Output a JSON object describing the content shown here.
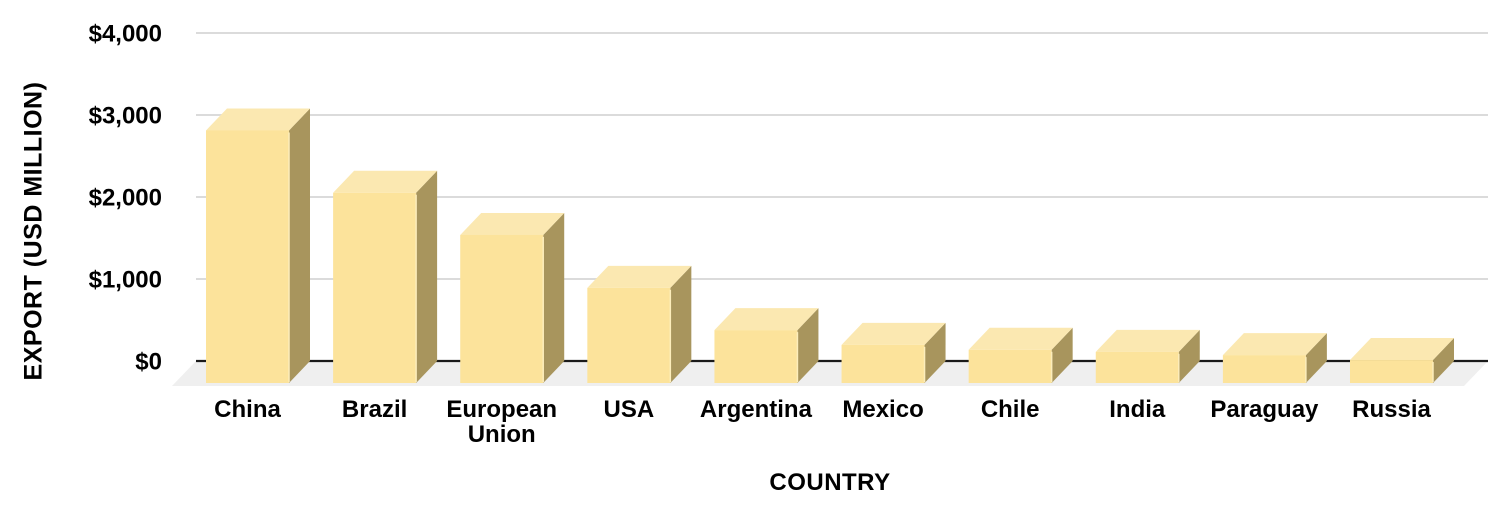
{
  "chart_data": {
    "type": "bar",
    "effect": "3d-column",
    "xlabel": "COUNTRY",
    "ylabel": "EXPORT (USD MILLION)",
    "categories": [
      "China",
      "Brazil",
      "European Union",
      "USA",
      "Argentina",
      "Mexico",
      "Chile",
      "India",
      "Paraguay",
      "Russia"
    ],
    "values": [
      3080,
      2320,
      1805,
      1160,
      645,
      465,
      405,
      380,
      340,
      280
    ],
    "ylim": [
      0,
      4000
    ],
    "yticks": [
      {
        "value": 0,
        "label": "$0"
      },
      {
        "value": 1000,
        "label": "$1,000"
      },
      {
        "value": 2000,
        "label": "$2,000"
      },
      {
        "value": 3000,
        "label": "$3,000"
      },
      {
        "value": 4000,
        "label": "$4,000"
      }
    ],
    "grid": true,
    "legend": "none",
    "colors": {
      "bar_front": "#FCE39B",
      "bar_top": "#FBE8B1",
      "bar_side": "#A8955D",
      "bar_edge_highlight": "#FCEDBB",
      "floor": "#EFEFEF",
      "gridline": "#DBDBDB",
      "axis_line": "#1A1A1A",
      "text": "#000000",
      "background": "#FFFFFF"
    }
  }
}
